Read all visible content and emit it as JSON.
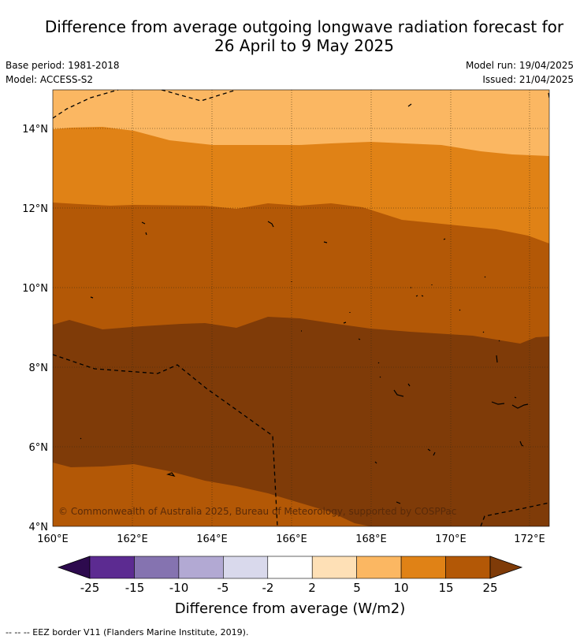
{
  "title": {
    "line1": "Difference from average outgoing longwave radiation forecast for",
    "line2": "26 April to 9 May 2025"
  },
  "meta": {
    "base_period": "Base period: 1981-2018",
    "model": "Model: ACCESS-S2",
    "model_run": "Model run: 19/04/2025",
    "issued": "Issued: 21/04/2025"
  },
  "map": {
    "lat_labels": [
      "14°N",
      "12°N",
      "10°N",
      "8°N",
      "6°N",
      "4°N"
    ],
    "lon_labels": [
      "160°E",
      "162°E",
      "164°E",
      "166°E",
      "168°E",
      "170°E",
      "172°E"
    ],
    "credit": "© Commonwealth of Australia 2025, Bureau of Meteorology, supported by COSPPac"
  },
  "colorbar": {
    "ticks": [
      "-25",
      "-15",
      "-10",
      "-5",
      "-2",
      "2",
      "5",
      "10",
      "15",
      "25"
    ],
    "colors": [
      "#2d0a4e",
      "#5c2b91",
      "#8573b0",
      "#b2a9d3",
      "#d9d9ec",
      "#ffffff",
      "#fee0b6",
      "#fbb762",
      "#e08216",
      "#b35806",
      "#7f3b08"
    ],
    "title": "Difference from average (W/m2)"
  },
  "legend_note": "--  --  -- EEZ border V11 (Flanders Marine Institute, 2019)."
}
